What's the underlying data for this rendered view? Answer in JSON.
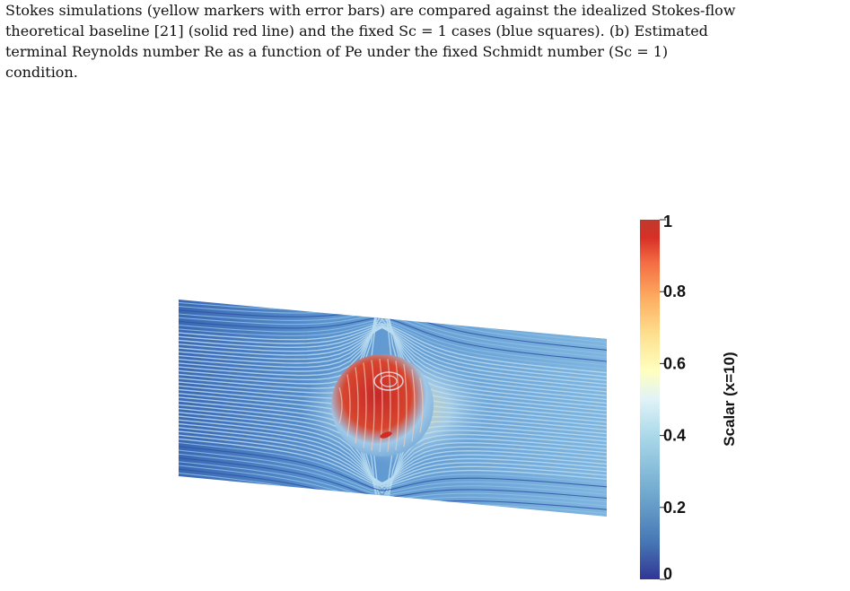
{
  "caption": {
    "line1": "Stokes simulations (yellow markers with error bars) are compared against the idealized Stokes-flow",
    "line2": "theoretical baseline [21] (solid red line) and the fixed Sc = 1 cases (blue squares). (b) Estimated",
    "line3": "terminal Reynolds number Re as a function of Pe under the fixed Schmidt number (Sc = 1)",
    "line4": "condition."
  },
  "figure": {
    "colorbar": {
      "title": "Scalar (x=10)",
      "ticks": [
        "1",
        "0.8",
        "0.6",
        "0.4",
        "0.2",
        "0"
      ],
      "range": [
        0,
        1
      ],
      "colormap": [
        "#313695",
        "#4575b4",
        "#74add1",
        "#abd9e9",
        "#e0f3f8",
        "#ffffbf",
        "#fee090",
        "#fdae61",
        "#f46d43",
        "#d73027",
        "#a50026"
      ]
    },
    "colors": {
      "plane_background": "#4f86c6",
      "sphere_core": "#d73a2b",
      "sphere_edge": "#8fc2e6",
      "wake_high": "#fdae61"
    }
  }
}
